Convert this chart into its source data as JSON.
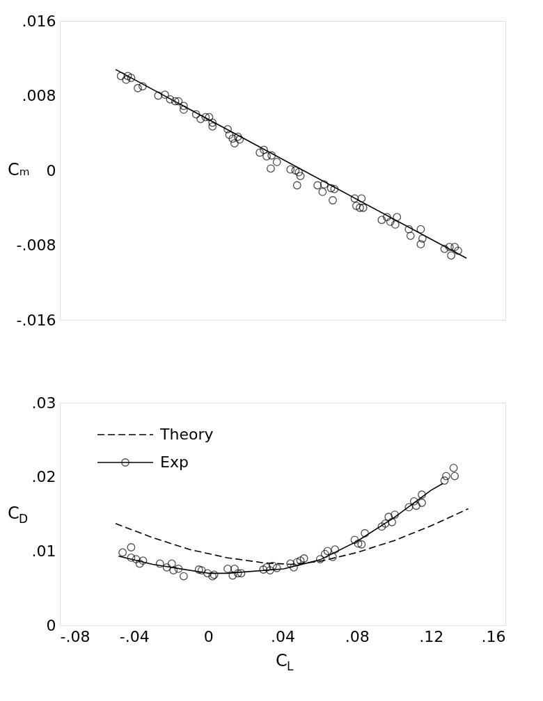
{
  "chart_data": [
    {
      "type": "scatter",
      "ylabel": "Cₘ",
      "xlim": [
        -0.08,
        0.16
      ],
      "ylim": [
        -0.016,
        0.016
      ],
      "xticks": [
        {
          "value": -0.08,
          "label": null
        },
        {
          "value": -0.04,
          "label": null
        },
        {
          "value": 0,
          "label": null
        },
        {
          "value": 0.04,
          "label": null
        },
        {
          "value": 0.08,
          "label": null
        },
        {
          "value": 0.12,
          "label": null
        },
        {
          "value": 0.16,
          "label": null
        }
      ],
      "yticks": [
        {
          "value": -0.016,
          "label": "-.016"
        },
        {
          "value": -0.008,
          "label": "-.008"
        },
        0,
        {
          "value": 0.008,
          "label": ".008"
        },
        {
          "value": 0.016,
          "label": ".016"
        }
      ],
      "tick_labels": "y",
      "grid": false,
      "series": [
        {
          "marker": "circle",
          "color": "#000000",
          "x": [
            -0.0471,
            -0.0434,
            -0.0416,
            -0.0443,
            -0.038,
            -0.0354,
            -0.027,
            -0.0234,
            -0.0206,
            -0.0179,
            -0.0161,
            -0.0133,
            -0.0133,
            -0.0066,
            -0.0042,
            -0.0015,
            0.0004,
            0.0022,
            0.0022,
            0.0104,
            0.0113,
            0.0131,
            0.0159,
            0.0168,
            0.0141,
            0.0277,
            0.0299,
            0.0314,
            0.0341,
            0.0369,
            0.0336,
            0.0442,
            0.0469,
            0.0487,
            0.0496,
            0.0478,
            0.0588,
            0.0624,
            0.0615,
            0.0661,
            0.0679,
            0.067,
            0.0788,
            0.0825,
            0.0797,
            0.0816,
            0.0834,
            0.0934,
            0.0962,
            0.098,
            0.1016,
            0.1007,
            0.108,
            0.1089,
            0.1144,
            0.1153,
            0.1144,
            0.1272,
            0.1299,
            0.1327,
            0.1345,
            0.1308
          ],
          "values": [
            0.0101,
            0.0101,
            0.0099,
            0.0097,
            0.0088,
            0.009,
            0.008,
            0.0081,
            0.0076,
            0.0074,
            0.0074,
            0.0069,
            0.0065,
            0.006,
            0.0055,
            0.0057,
            0.0057,
            0.0051,
            0.0047,
            0.0044,
            0.0038,
            0.0034,
            0.0036,
            0.0033,
            0.0029,
            0.0019,
            0.0022,
            0.0015,
            0.0016,
            0.0009,
            0.0002,
            0.0001,
            0.0,
            -0.0002,
            -0.0006,
            -0.0016,
            -0.0016,
            -0.0015,
            -0.0023,
            -0.0019,
            -0.002,
            -0.0032,
            -0.003,
            -0.003,
            -0.0038,
            -0.004,
            -0.004,
            -0.0053,
            -0.005,
            -0.0055,
            -0.005,
            -0.0058,
            -0.0063,
            -0.007,
            -0.0063,
            -0.0073,
            -0.0079,
            -0.0084,
            -0.0082,
            -0.0082,
            -0.0086,
            -0.0091
          ]
        },
        {
          "type": "line",
          "color": "#000000",
          "x": [
            -0.05,
            0.139
          ],
          "values": [
            0.0108,
            -0.0094
          ]
        }
      ]
    },
    {
      "type": "scatter",
      "xlabel": "C$_{L}$",
      "ylabel": "C$_{D}$",
      "xlim": [
        -0.08,
        0.16
      ],
      "ylim": [
        0,
        0.03
      ],
      "xticks": [
        {
          "value": -0.08,
          "label": "-.08"
        },
        {
          "value": -0.04,
          "label": "-.04"
        },
        0,
        {
          "value": 0.04,
          "label": ".04"
        },
        {
          "value": 0.08,
          "label": ".08"
        },
        {
          "value": 0.12,
          "label": ".12"
        },
        {
          "value": 0.16,
          "label": ".16"
        }
      ],
      "yticks": [
        0,
        {
          "value": 0.01,
          "label": ".01"
        },
        {
          "value": 0.02,
          "label": ".02"
        },
        {
          "value": 0.03,
          "label": ".03"
        }
      ],
      "grid": false,
      "legend": "top left",
      "series": [
        {
          "name": "Theory",
          "type": "line",
          "line_style": "dashed",
          "color": "#000000",
          "x": [
            -0.05,
            -0.03,
            -0.01,
            0.01,
            0.03,
            0.045,
            0.06,
            0.08,
            0.1,
            0.12,
            0.14
          ],
          "values": [
            0.0137,
            0.0118,
            0.0102,
            0.0091,
            0.0084,
            0.0082,
            0.0086,
            0.0098,
            0.0114,
            0.0134,
            0.0157
          ]
        },
        {
          "name": "Exp",
          "marker": "circle",
          "color": "#000000",
          "x": [
            -0.0462,
            -0.0416,
            -0.0416,
            -0.0389,
            -0.037,
            -0.0352,
            -0.0261,
            -0.0224,
            -0.0197,
            -0.0188,
            -0.0161,
            -0.0133,
            -0.0051,
            -0.0036,
            -0.0005,
            0.0022,
            0.0031,
            0.0104,
            0.0141,
            0.0131,
            0.0159,
            0.0177,
            0.0296,
            0.0314,
            0.0332,
            0.0347,
            0.0369,
            0.0442,
            0.046,
            0.0478,
            0.0496,
            0.0515,
            0.0602,
            0.0628,
            0.0642,
            0.067,
            0.0682,
            0.0788,
            0.0807,
            0.0825,
            0.0843,
            0.0934,
            0.0953,
            0.0971,
            0.0989,
            0.1004,
            0.108,
            0.1108,
            0.112,
            0.115,
            0.115,
            0.1272,
            0.1281,
            0.1321,
            0.1327
          ],
          "values": [
            0.0098,
            0.0105,
            0.0091,
            0.0089,
            0.0083,
            0.0087,
            0.0083,
            0.0078,
            0.0083,
            0.0074,
            0.0076,
            0.0066,
            0.0075,
            0.0074,
            0.007,
            0.0066,
            0.0068,
            0.0076,
            0.0076,
            0.0067,
            0.007,
            0.007,
            0.0075,
            0.0078,
            0.0074,
            0.008,
            0.0077,
            0.0083,
            0.0078,
            0.0085,
            0.0087,
            0.009,
            0.0089,
            0.0096,
            0.01,
            0.0092,
            0.0102,
            0.0115,
            0.011,
            0.0109,
            0.0124,
            0.0133,
            0.0137,
            0.0146,
            0.0139,
            0.0149,
            0.0159,
            0.0167,
            0.0161,
            0.0176,
            0.0165,
            0.0195,
            0.0201,
            0.0212,
            0.0201
          ]
        },
        {
          "type": "line",
          "color": "#000000",
          "x": [
            -0.0484,
            -0.03,
            -0.02,
            0.0,
            0.01,
            0.0405,
            0.06,
            0.08,
            0.1,
            0.12,
            0.1263
          ],
          "values": [
            0.0093,
            0.0082,
            0.0078,
            0.007,
            0.007,
            0.0076,
            0.0088,
            0.0113,
            0.0145,
            0.0182,
            0.0191
          ]
        }
      ]
    }
  ]
}
